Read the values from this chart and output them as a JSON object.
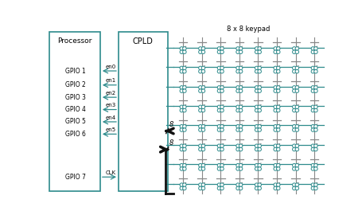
{
  "bg_color": "#ffffff",
  "processor_label": "Processor",
  "cpld_label": "CPLD",
  "keypad_label": "8 x 8 keypad",
  "gpio_labels": [
    "GPIO 1",
    "GPIO 2",
    "GPIO 3",
    "GPIO 4",
    "GPIO 5",
    "GPIO 6",
    "GPIO 7"
  ],
  "en_labels": [
    "en0",
    "en1",
    "en2",
    "en3",
    "en4",
    "en5",
    "CLK"
  ],
  "signal_color": "#2e8b8c",
  "box_color": "#2e8b8c",
  "switch_color": "#2e8b8c",
  "row_line_color": "#2e8b8c",
  "col_line_color": "#888888",
  "arrow_color": "#111111",
  "fig_width": 4.56,
  "fig_height": 2.8,
  "dpi": 100,
  "grid_rows": 8,
  "grid_cols": 8
}
